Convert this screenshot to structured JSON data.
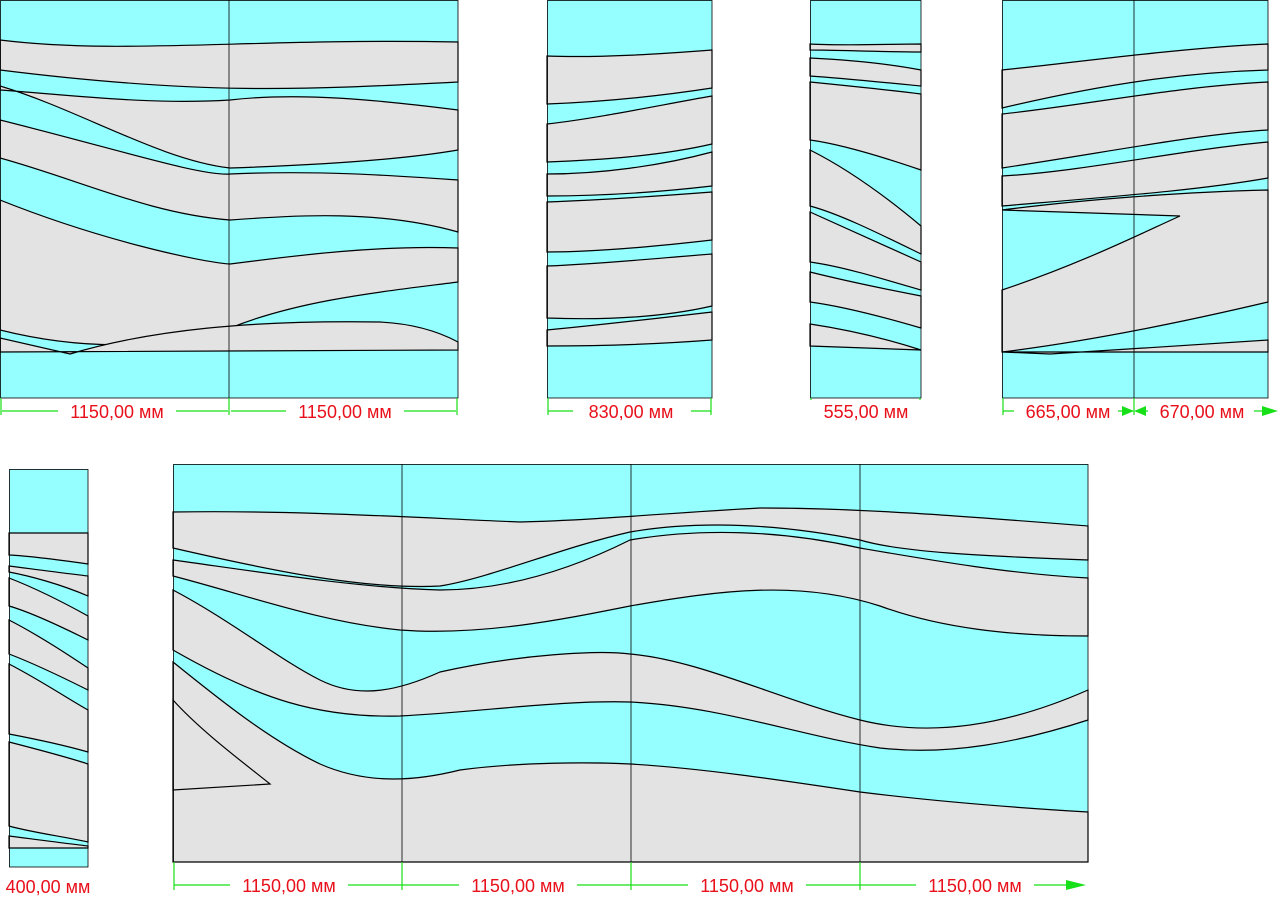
{
  "colors": {
    "water": "#95feff",
    "band": "#e3e3e3",
    "outline": "#000000",
    "dimension_line": "#18e018",
    "dimension_text": "#e8101a"
  },
  "panels": {
    "panel_a": {
      "dims": [
        "1150,00 мм",
        "1150,00 мм"
      ]
    },
    "panel_b": {
      "dims": [
        "830,00 мм"
      ]
    },
    "panel_c": {
      "dims": [
        "555,00 мм"
      ]
    },
    "panel_d": {
      "dims": [
        "665,00 мм",
        "670,00 мм"
      ]
    },
    "panel_e": {
      "dims": [
        "400,00 мм"
      ]
    },
    "panel_f": {
      "dims": [
        "1150,00 мм",
        "1150,00 мм",
        "1150,00 мм",
        "1150,00 мм"
      ]
    }
  }
}
